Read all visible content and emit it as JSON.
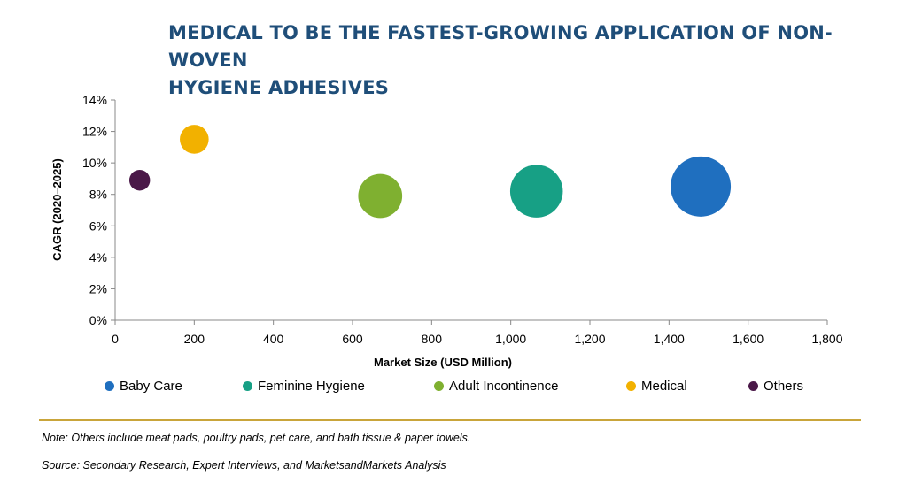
{
  "title": {
    "line1": "MEDICAL TO BE THE FASTEST-GROWING APPLICATION OF NON-WOVEN",
    "line2": "HYGIENE ADHESIVES"
  },
  "chart_data": {
    "type": "scatter",
    "title": "MEDICAL TO BE THE FASTEST-GROWING APPLICATION OF NON-WOVEN HYGIENE ADHESIVES",
    "xlabel": "Market Size (USD Million)",
    "ylabel": "CAGR (2020–2025)",
    "xlim": [
      0,
      1800
    ],
    "ylim": [
      0,
      14
    ],
    "x_ticks": [
      "0",
      "200",
      "400",
      "600",
      "800",
      "1,000",
      "1,200",
      "1,400",
      "1,600",
      "1,800"
    ],
    "y_ticks": [
      "0%",
      "2%",
      "4%",
      "6%",
      "8%",
      "10%",
      "12%",
      "14%"
    ],
    "grid": false,
    "legend_position": "bottom",
    "series": [
      {
        "name": "Baby Care",
        "x": 1480,
        "y": 8.5,
        "size": 1480,
        "color": "#1f6fbf"
      },
      {
        "name": "Feminine Hygiene",
        "x": 1065,
        "y": 8.2,
        "size": 1065,
        "color": "#17a085"
      },
      {
        "name": "Adult Incontinence",
        "x": 670,
        "y": 7.9,
        "size": 670,
        "color": "#7fb030"
      },
      {
        "name": "Medical",
        "x": 200,
        "y": 11.5,
        "size": 200,
        "color": "#f2b100"
      },
      {
        "name": "Others",
        "x": 62,
        "y": 8.9,
        "size": 62,
        "color": "#4a1848"
      }
    ]
  },
  "footer": {
    "note": "Note: Others include meat pads, poultry pads, pet care, and bath tissue & paper towels.",
    "source": "Source: Secondary Research, Expert Interviews, and MarketsandMarkets Analysis"
  }
}
